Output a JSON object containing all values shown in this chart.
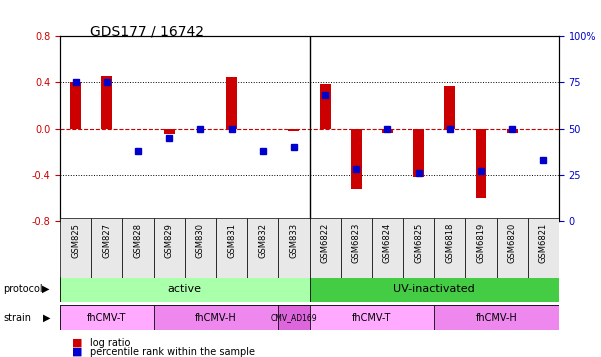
{
  "title": "GDS177 / 16742",
  "samples": [
    "GSM825",
    "GSM827",
    "GSM828",
    "GSM829",
    "GSM830",
    "GSM831",
    "GSM832",
    "GSM833",
    "GSM6822",
    "GSM6823",
    "GSM6824",
    "GSM6825",
    "GSM6818",
    "GSM6819",
    "GSM6820",
    "GSM6821"
  ],
  "log_ratio": [
    0.4,
    0.45,
    0.0,
    -0.05,
    0.0,
    0.44,
    0.0,
    -0.02,
    0.38,
    -0.52,
    -0.04,
    -0.42,
    0.37,
    -0.6,
    -0.04,
    0.0
  ],
  "percentile": [
    75,
    75,
    38,
    45,
    50,
    50,
    38,
    40,
    68,
    28,
    50,
    26,
    50,
    27,
    50,
    33
  ],
  "ylim": [
    -0.8,
    0.8
  ],
  "yticks_left": [
    -0.8,
    -0.4,
    0.0,
    0.4,
    0.8
  ],
  "yticks_right": [
    0,
    25,
    50,
    75,
    100
  ],
  "protocol_groups": [
    {
      "label": "active",
      "start": 0,
      "end": 8,
      "color": "#aaffaa"
    },
    {
      "label": "UV-inactivated",
      "start": 8,
      "end": 16,
      "color": "#44cc44"
    }
  ],
  "strain_groups": [
    {
      "label": "fhCMV-T",
      "start": 0,
      "end": 3,
      "color": "#ffaaff"
    },
    {
      "label": "fhCMV-H",
      "start": 3,
      "end": 7,
      "color": "#ee88ee"
    },
    {
      "label": "CMV_AD169",
      "start": 7,
      "end": 8,
      "color": "#dd66dd"
    },
    {
      "label": "fhCMV-T",
      "start": 8,
      "end": 12,
      "color": "#ffaaff"
    },
    {
      "label": "fhCMV-H",
      "start": 12,
      "end": 16,
      "color": "#ee88ee"
    }
  ],
  "bar_color": "#cc0000",
  "dot_color": "#0000cc",
  "ref_line_color": "#cc0000",
  "grid_color": "#000000",
  "bg_color": "#ffffff",
  "tick_label_color_left": "#cc0000",
  "tick_label_color_right": "#0000cc",
  "legend_items": [
    {
      "label": "log ratio",
      "color": "#cc0000"
    },
    {
      "label": "percentile rank within the sample",
      "color": "#0000cc"
    }
  ]
}
